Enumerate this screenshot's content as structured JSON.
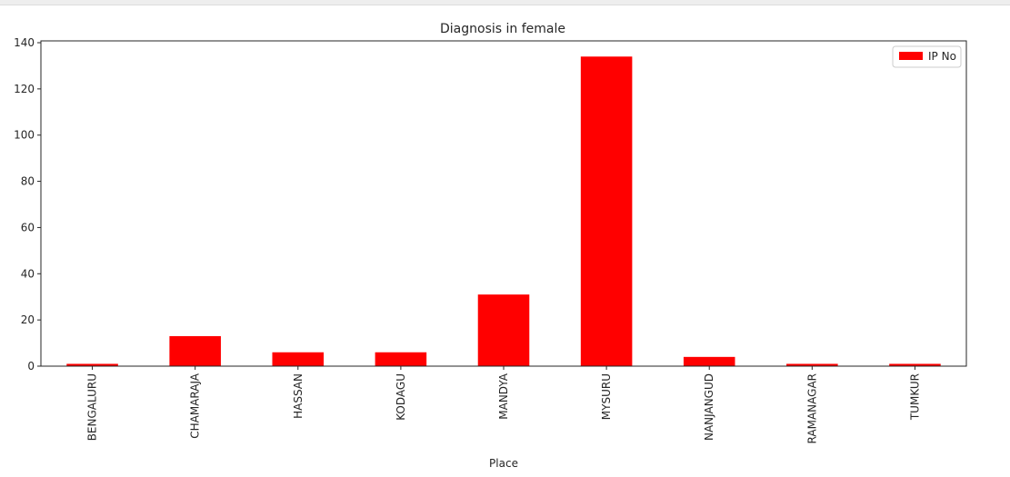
{
  "chart_data": {
    "type": "bar",
    "title": "Diagnosis in female",
    "xlabel": "Place",
    "ylabel": "",
    "categories": [
      "BENGALURU",
      "CHAMARAJA",
      "HASSAN",
      "KODAGU",
      "MANDYA",
      "MYSURU",
      "NANJANGUD",
      "RAMANAGAR",
      "TUMKUR"
    ],
    "series": [
      {
        "name": "IP No",
        "color": "#ff0000",
        "values": [
          1,
          13,
          6,
          6,
          31,
          134,
          4,
          1,
          1
        ]
      }
    ],
    "ylim": [
      0,
      140
    ],
    "yticks": [
      0,
      20,
      40,
      60,
      80,
      100,
      120,
      140
    ],
    "grid": false,
    "legend_position": "top-right"
  }
}
